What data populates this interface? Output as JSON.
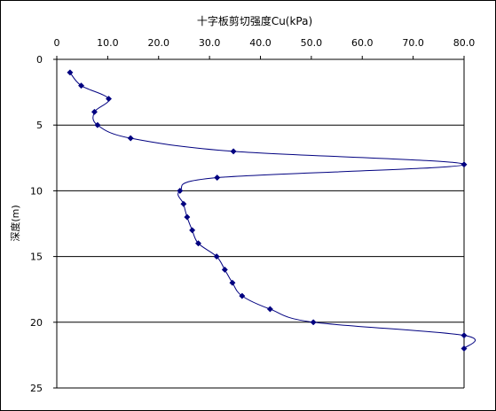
{
  "chart_data": {
    "type": "line",
    "title": "十字板剪切强度Cu(kPa)",
    "xlabel": "十字板剪切强度Cu(kPa)",
    "ylabel": "深度(m)",
    "x_axis_position": "top",
    "y_axis_inverted": true,
    "xlim": [
      0,
      80
    ],
    "ylim": [
      0,
      25
    ],
    "x_ticks": [
      0,
      10,
      20,
      30,
      40,
      50,
      60,
      70,
      80
    ],
    "x_tick_labels": [
      "0",
      "10.0",
      "20.0",
      "30.0",
      "40.0",
      "50.0",
      "60.0",
      "70.0",
      "80.0"
    ],
    "y_ticks": [
      0,
      5,
      10,
      15,
      20,
      25
    ],
    "y_tick_labels": [
      "0",
      "5",
      "10",
      "15",
      "20",
      "25"
    ],
    "grid": "horizontal major gridlines at y = 5, 10, 15, 20",
    "legend": "none",
    "series": [
      {
        "color": "#000080",
        "marker": "diamond",
        "smooth": true,
        "points": [
          {
            "x": 2.6,
            "y": 1
          },
          {
            "x": 4.8,
            "y": 2
          },
          {
            "x": 10.2,
            "y": 3
          },
          {
            "x": 7.4,
            "y": 4
          },
          {
            "x": 8.0,
            "y": 5
          },
          {
            "x": 14.5,
            "y": 6
          },
          {
            "x": 34.7,
            "y": 7
          },
          {
            "x": 80.0,
            "y": 8
          },
          {
            "x": 31.5,
            "y": 9
          },
          {
            "x": 24.2,
            "y": 10
          },
          {
            "x": 24.9,
            "y": 11
          },
          {
            "x": 25.6,
            "y": 12
          },
          {
            "x": 26.6,
            "y": 13
          },
          {
            "x": 27.8,
            "y": 14
          },
          {
            "x": 31.4,
            "y": 15
          },
          {
            "x": 33.0,
            "y": 16
          },
          {
            "x": 34.5,
            "y": 17
          },
          {
            "x": 36.4,
            "y": 18
          },
          {
            "x": 41.9,
            "y": 19
          },
          {
            "x": 50.4,
            "y": 20
          },
          {
            "x": 80.0,
            "y": 21
          },
          {
            "x": 80.0,
            "y": 22
          }
        ]
      }
    ]
  }
}
